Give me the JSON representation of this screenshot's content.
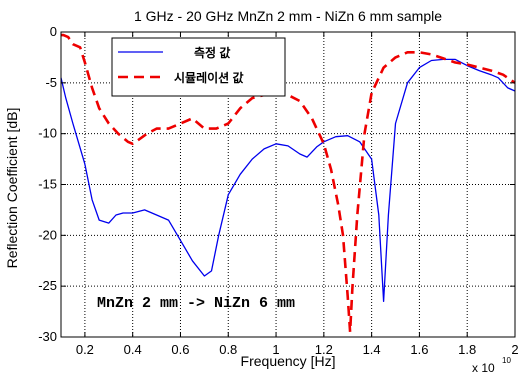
{
  "chart_data": {
    "type": "line",
    "title": "1 GHz - 20 GHz    MnZn 2 mm - NiZn 6 mm sample",
    "xlabel": "Frequency [Hz]",
    "ylabel": "Reflection Coefficient  [dB]",
    "x_multiplier_label": "x 10",
    "x_multiplier_exponent": "10",
    "xlim": [
      1000000000.0,
      20000000000.0
    ],
    "ylim": [
      -30,
      0
    ],
    "x_ticks": [
      2000000000.0,
      4000000000.0,
      6000000000.0,
      8000000000.0,
      10000000000.0,
      12000000000.0,
      14000000000.0,
      16000000000.0,
      18000000000.0,
      20000000000.0
    ],
    "x_tick_labels": [
      "0.2",
      "0.4",
      "0.6",
      "0.8",
      "1",
      "1.2",
      "1.4",
      "1.6",
      "1.8",
      "2"
    ],
    "y_ticks": [
      -30,
      -25,
      -20,
      -15,
      -10,
      -5,
      0
    ],
    "y_tick_labels": [
      "-30",
      "-25",
      "-20",
      "-15",
      "-10",
      "-5",
      "0"
    ],
    "grid": true,
    "legend_position": "top-left",
    "annotation": "MnZn 2 mm -> NiZn 6 mm",
    "series": [
      {
        "name": "측정 값",
        "color": "#0000ee",
        "style": "solid",
        "x": [
          1000000000.0,
          1200000000.0,
          1500000000.0,
          2000000000.0,
          2300000000.0,
          2600000000.0,
          3000000000.0,
          3300000000.0,
          3600000000.0,
          4000000000.0,
          4500000000.0,
          5000000000.0,
          5500000000.0,
          6000000000.0,
          6500000000.0,
          7000000000.0,
          7300000000.0,
          7600000000.0,
          8000000000.0,
          8500000000.0,
          9000000000.0,
          9500000000.0,
          10000000000.0,
          10500000000.0,
          11000000000.0,
          11300000000.0,
          11700000000.0,
          12000000000.0,
          12500000000.0,
          13000000000.0,
          13500000000.0,
          14000000000.0,
          14300000000.0,
          14500000000.0,
          14700000000.0,
          15000000000.0,
          15500000000.0,
          16000000000.0,
          16500000000.0,
          17000000000.0,
          17500000000.0,
          18000000000.0,
          18500000000.0,
          19000000000.0,
          19300000000.0,
          19700000000.0,
          20000000000.0
        ],
        "y": [
          -4.5,
          -6.5,
          -9.0,
          -13.0,
          -16.5,
          -18.5,
          -18.8,
          -18.0,
          -17.8,
          -17.8,
          -17.5,
          -18.0,
          -18.5,
          -20.5,
          -22.5,
          -24.0,
          -23.5,
          -20.0,
          -16.0,
          -14.0,
          -12.5,
          -11.5,
          -11.0,
          -11.2,
          -12.0,
          -12.3,
          -11.3,
          -10.8,
          -10.3,
          -10.2,
          -10.8,
          -12.5,
          -18.0,
          -26.5,
          -18.0,
          -9.0,
          -5.0,
          -3.5,
          -2.8,
          -2.7,
          -2.7,
          -3.3,
          -3.8,
          -4.2,
          -4.5,
          -5.5,
          -5.8
        ]
      },
      {
        "name": "시뮬레이션 값",
        "color": "#ee0000",
        "style": "dashed",
        "x": [
          1000000000.0,
          1100000000.0,
          1300000000.0,
          1500000000.0,
          1800000000.0,
          2000000000.0,
          2300000000.0,
          2600000000.0,
          3000000000.0,
          3400000000.0,
          3800000000.0,
          4000000000.0,
          4300000000.0,
          4600000000.0,
          5000000000.0,
          5500000000.0,
          6000000000.0,
          6500000000.0,
          7000000000.0,
          7500000000.0,
          8000000000.0,
          8500000000.0,
          9000000000.0,
          9500000000.0,
          10000000000.0,
          10500000000.0,
          11000000000.0,
          11500000000.0,
          12000000000.0,
          12300000000.0,
          12600000000.0,
          12800000000.0,
          13000000000.0,
          13100000000.0,
          13200000000.0,
          13400000000.0,
          13700000000.0,
          14000000000.0,
          14500000000.0,
          15000000000.0,
          15500000000.0,
          16000000000.0,
          16500000000.0,
          17000000000.0,
          17500000000.0,
          18000000000.0,
          18500000000.0,
          19000000000.0,
          19500000000.0,
          20000000000.0
        ],
        "y": [
          -0.3,
          -0.3,
          -0.5,
          -1.2,
          -1.5,
          -3.0,
          -5.5,
          -7.5,
          -9.0,
          -10.0,
          -10.8,
          -11.0,
          -10.5,
          -10.0,
          -9.5,
          -9.5,
          -9.0,
          -8.5,
          -9.5,
          -9.5,
          -9.0,
          -7.5,
          -6.5,
          -6.2,
          -5.8,
          -6.2,
          -6.8,
          -8.5,
          -11.0,
          -13.5,
          -17.0,
          -20.0,
          -26.0,
          -29.5,
          -25.0,
          -18.0,
          -10.0,
          -6.0,
          -3.5,
          -2.5,
          -2.0,
          -2.0,
          -2.2,
          -2.6,
          -3.0,
          -3.2,
          -3.5,
          -3.8,
          -4.2,
          -5.0
        ]
      }
    ]
  }
}
